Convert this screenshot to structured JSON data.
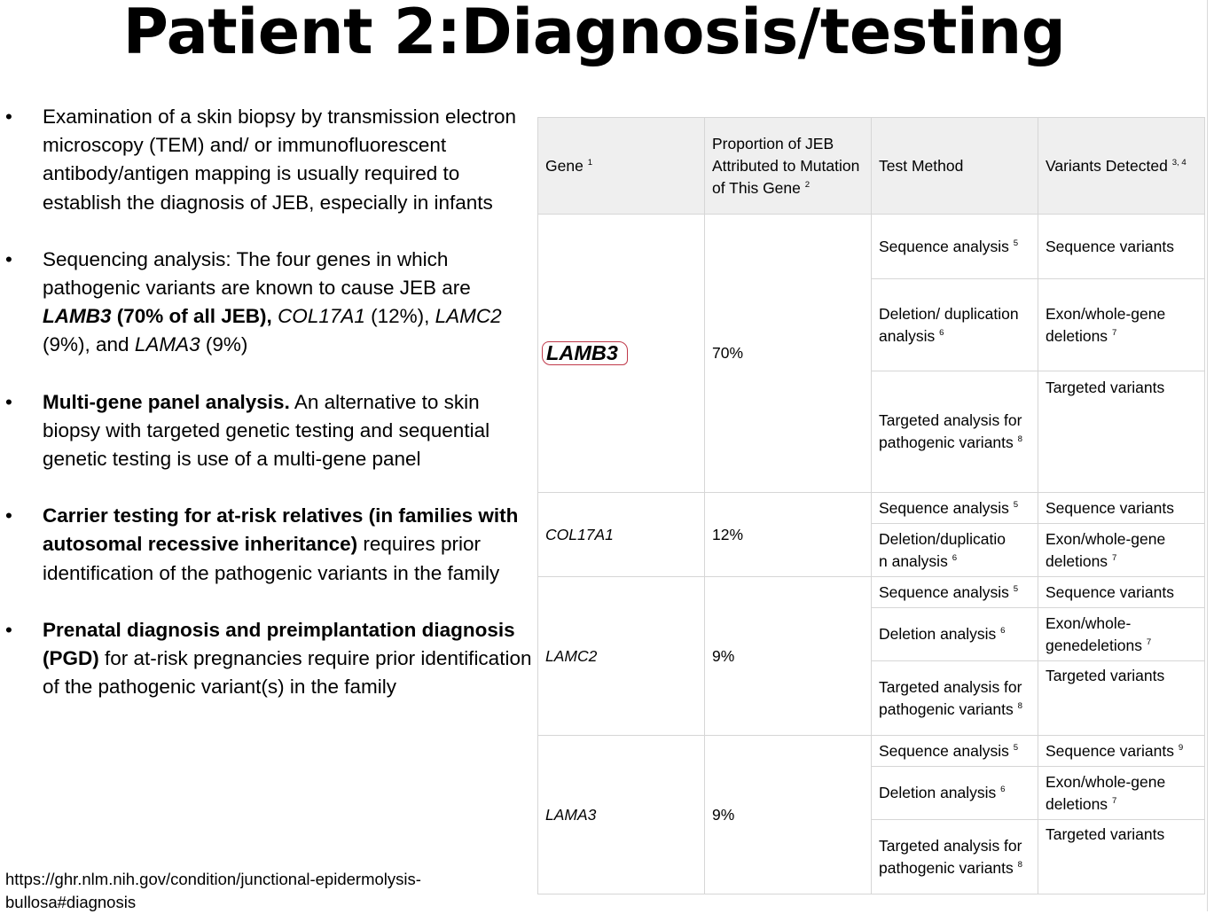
{
  "title": "Patient 2:Diagnosis/testing",
  "bullets": {
    "b1": "Examination of a skin biopsy by transmission electron microscopy (TEM) and/ or immunofluorescent antibody/antigen mapping is usually required to establish the diagnosis of JEB, especially in infants",
    "b2": {
      "intro": "Sequencing analysis: The four genes in which pathogenic variants are known to cause JEB are ",
      "lamb3": "LAMB3",
      "lamb3_pct": " (70% of all JEB),",
      "col": "COL17A1",
      "col_pct": " (12%), ",
      "lamc2": "LAMC2",
      "lamc2_pct": " (9%), and ",
      "lama3": "LAMA3",
      "lama3_pct": " (9%)"
    },
    "b3": {
      "bold": "Multi-gene panel analysis.",
      "rest": " An alternative to skin biopsy with targeted genetic testing and sequential genetic testing is use of a multi-gene panel"
    },
    "b4": {
      "bold": "Carrier testing for at-risk relatives (in families with autosomal recessive inheritance)",
      "rest": " requires prior identification of the pathogenic variants in the family"
    },
    "b5": {
      "bold": "Prenatal diagnosis and preimplantation diagnosis (PGD)",
      "rest": " for at-risk pregnancies require prior identification of the pathogenic variant(s) in the family"
    }
  },
  "source": "https://ghr.nlm.nih.gov/condition/junctional-epidermolysis-bullosa#diagnosis",
  "table": {
    "headers": {
      "gene": "Gene",
      "gene_sup": "1",
      "proportion": "Proportion of JEB Attributed to Mutation of This Gene",
      "proportion_sup": "2",
      "method": "Test Method",
      "variants": "Variants Detected",
      "variants_sup": "3, 4"
    },
    "lamb3": {
      "gene": "LAMB3",
      "pct": "70%",
      "m1": "Sequence analysis",
      "m1_sup": "5",
      "v1": "Sequence variants",
      "m2": "Deletion/ duplication analysis",
      "m2_sup": "6",
      "v2": "Exon/whole-gene deletions",
      "v2_sup": "7",
      "m3": "Targeted analysis for pathogenic variants",
      "m3_sup": "8",
      "v3": "Targeted variants"
    },
    "col17a1": {
      "gene": "COL17A1",
      "pct": "12%",
      "m1": "Sequence analysis",
      "m1_sup": "5",
      "v1": "Sequence variants",
      "m2a": "Deletion/duplicatio",
      "m2b": "n analysis",
      "m2_sup": "6",
      "v2": "Exon/whole-gene deletions",
      "v2_sup": "7"
    },
    "lamc2": {
      "gene": "LAMC2",
      "pct": "9%",
      "m1": "Sequence analysis",
      "m1_sup": "5",
      "v1": "Sequence variants",
      "m2": "Deletion analysis",
      "m2_sup": "6",
      "v2a": "Exon/whole-",
      "v2b": "genedeletions",
      "v2_sup": "7",
      "m3": "Targeted analysis for pathogenic variants",
      "m3_sup": "8",
      "v3": "Targeted variants"
    },
    "lama3": {
      "gene": "LAMA3",
      "pct": "9%",
      "m1": "Sequence analysis",
      "m1_sup": "5",
      "v1": "Sequence variants",
      "v1_sup": "9",
      "m2": "Deletion analysis",
      "m2_sup": "6",
      "v2": "Exon/whole-gene deletions",
      "v2_sup": "7",
      "m3": "Targeted analysis for pathogenic variants",
      "m3_sup": "8",
      "v3": "Targeted variants"
    }
  }
}
